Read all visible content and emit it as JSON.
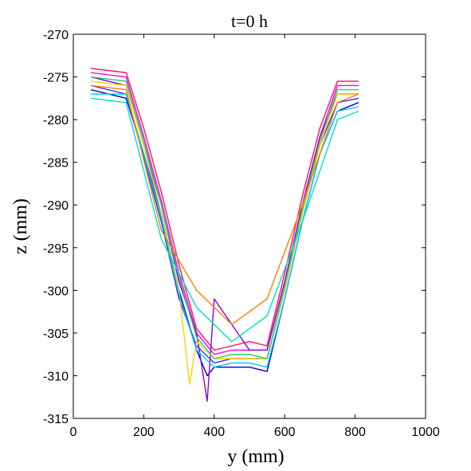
{
  "chart_data": {
    "type": "line",
    "title": "t=0 h",
    "xlabel": "y (mm)",
    "ylabel": "z (mm)",
    "xlim": [
      0,
      1000
    ],
    "ylim": [
      -315,
      -270
    ],
    "xticks": [
      0,
      200,
      400,
      600,
      800,
      1000
    ],
    "yticks": [
      -270,
      -275,
      -280,
      -285,
      -290,
      -295,
      -300,
      -305,
      -310,
      -315
    ],
    "grid": false,
    "legend": "none",
    "series_colors": [
      "#00c8ff",
      "#00e0c0",
      "#20d060",
      "#ffd000",
      "#ff8000",
      "#9000e0",
      "#3030ff",
      "#0000c8",
      "#ff00ff",
      "#ff1060"
    ],
    "series": [
      {
        "color": "#0000c8",
        "x": [
          50,
          150,
          200,
          250,
          300,
          350,
          380,
          400,
          450,
          500,
          550,
          600,
          650,
          700,
          750,
          810
        ],
        "y": [
          -276.5,
          -277.5,
          -284,
          -291,
          -300,
          -307,
          -310,
          -309,
          -309,
          -309,
          -309.5,
          -301,
          -292,
          -284,
          -279,
          -278
        ]
      },
      {
        "color": "#3030ff",
        "x": [
          50,
          150,
          200,
          250,
          300,
          350,
          400,
          450,
          500,
          550,
          600,
          650,
          700,
          750,
          810
        ],
        "y": [
          -276,
          -277,
          -284.5,
          -292,
          -301,
          -306.5,
          -308.5,
          -308,
          -308,
          -308,
          -300,
          -291,
          -283,
          -278,
          -277.5
        ]
      },
      {
        "color": "#ff00ff",
        "x": [
          50,
          150,
          200,
          250,
          300,
          350,
          400,
          450,
          500,
          550,
          600,
          650,
          700,
          750,
          810
        ],
        "y": [
          -274.5,
          -275,
          -282,
          -289.5,
          -298,
          -305,
          -307.5,
          -307,
          -307,
          -307,
          -299,
          -290,
          -282,
          -276,
          -276
        ]
      },
      {
        "color": "#ff1060",
        "x": [
          50,
          150,
          200,
          250,
          300,
          350,
          400,
          450,
          500,
          550,
          600,
          650,
          700,
          750,
          810
        ],
        "y": [
          -274,
          -274.5,
          -281,
          -288.5,
          -297,
          -304.5,
          -307,
          -306.5,
          -306,
          -306.5,
          -298,
          -289,
          -281,
          -275.5,
          -275.5
        ]
      },
      {
        "color": "#9000e0",
        "x": [
          50,
          150,
          200,
          250,
          300,
          350,
          380,
          400,
          450,
          500,
          550,
          600,
          650,
          700,
          750,
          810
        ],
        "y": [
          -275,
          -276,
          -283,
          -290,
          -299,
          -305,
          -313,
          -301,
          -304,
          -307,
          -307,
          -299,
          -290,
          -282,
          -277,
          -277
        ]
      },
      {
        "color": "#ffd000",
        "x": [
          50,
          150,
          200,
          250,
          300,
          330,
          350,
          400,
          450,
          500,
          550,
          600,
          650,
          700,
          750,
          810
        ],
        "y": [
          -275.5,
          -276,
          -283,
          -291,
          -300,
          -311,
          -306,
          -308,
          -308,
          -308,
          -308,
          -300,
          -291,
          -283,
          -277,
          -277
        ]
      },
      {
        "color": "#00c8ff",
        "x": [
          50,
          150,
          200,
          250,
          300,
          350,
          400,
          450,
          500,
          550,
          600,
          650,
          700,
          750,
          810
        ],
        "y": [
          -277,
          -277,
          -284,
          -291.5,
          -300.5,
          -307,
          -309,
          -308.5,
          -308.5,
          -309,
          -301,
          -292,
          -284,
          -279,
          -278.5
        ]
      },
      {
        "color": "#20d060",
        "x": [
          50,
          150,
          200,
          250,
          300,
          350,
          400,
          450,
          500,
          550,
          600,
          650,
          700,
          750,
          810
        ],
        "y": [
          -275,
          -275.5,
          -282.5,
          -290,
          -298.5,
          -305.5,
          -308,
          -307.5,
          -307.5,
          -308,
          -299.5,
          -290.5,
          -282.5,
          -276.5,
          -276.5
        ]
      },
      {
        "color": "#ff8000",
        "x": [
          50,
          150,
          250,
          350,
          450,
          550,
          650,
          750,
          810
        ],
        "y": [
          -276,
          -276.5,
          -293,
          -300,
          -304,
          -301,
          -290,
          -278,
          -277
        ]
      },
      {
        "color": "#00e0c0",
        "x": [
          50,
          150,
          250,
          350,
          450,
          550,
          650,
          750,
          810
        ],
        "y": [
          -277.5,
          -278,
          -294,
          -302,
          -306,
          -303,
          -292,
          -280,
          -279
        ]
      }
    ]
  }
}
